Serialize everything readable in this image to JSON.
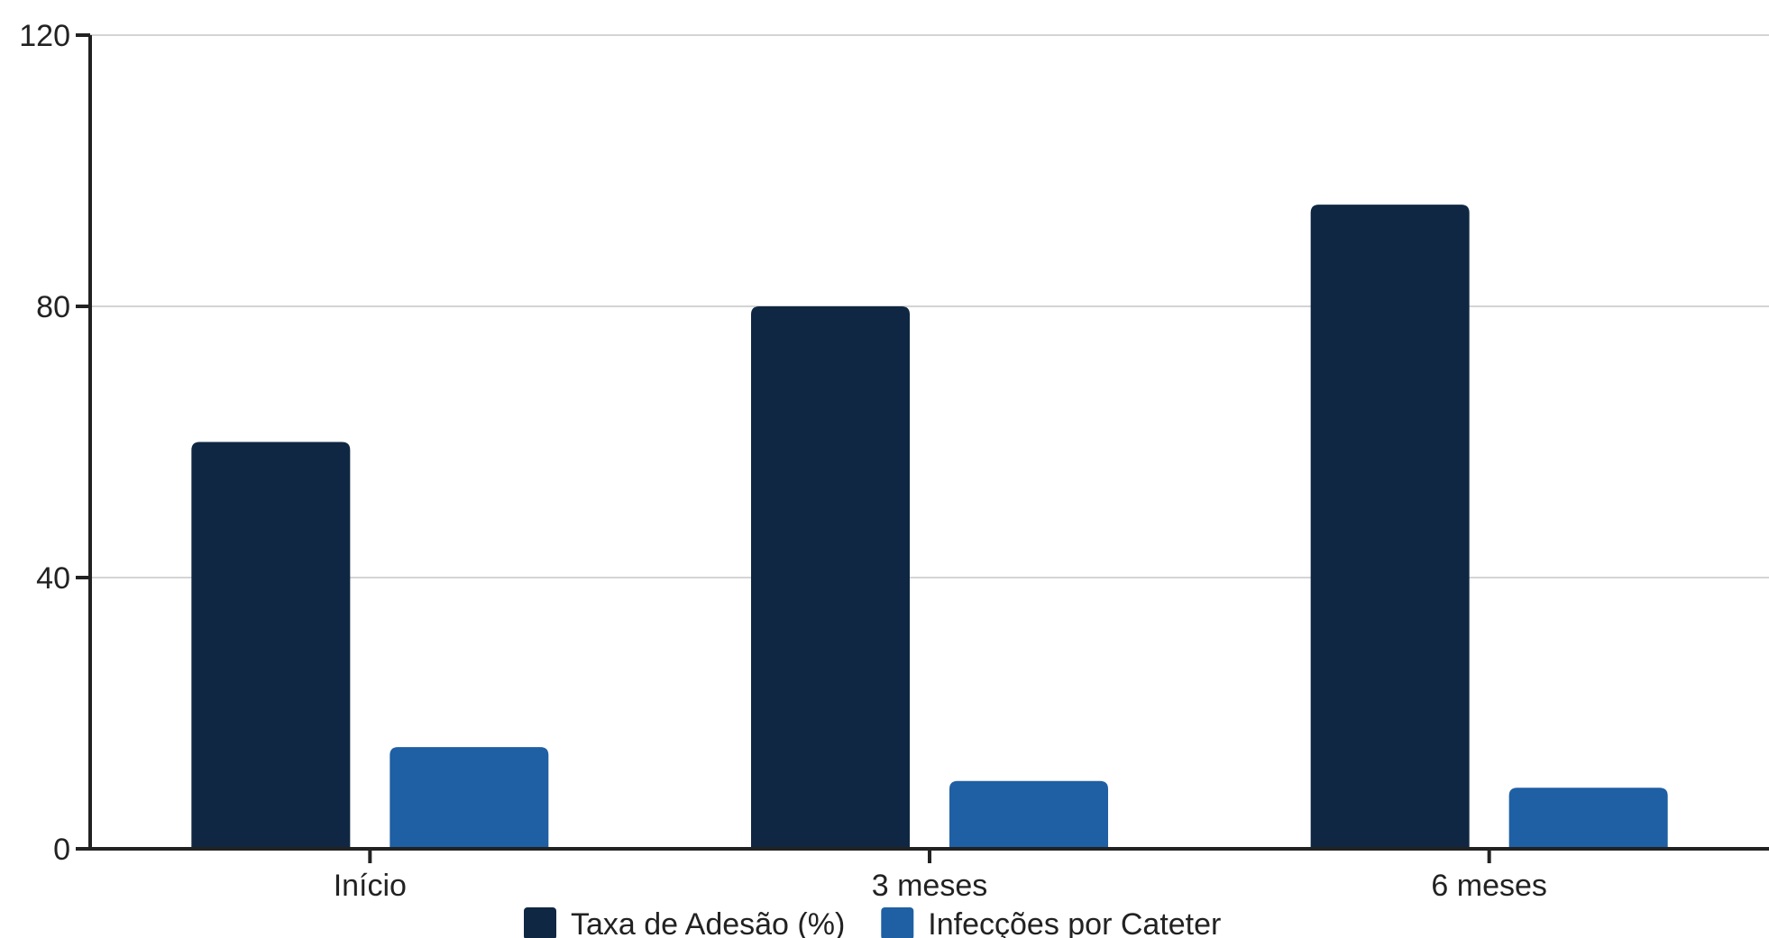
{
  "chart_data": {
    "type": "bar",
    "categories": [
      "Início",
      "3 meses",
      "6 meses"
    ],
    "series": [
      {
        "name": "Taxa de Adesão (%)",
        "values": [
          60,
          80,
          95
        ],
        "color": "#0f2742"
      },
      {
        "name": "Infecções por Cateter",
        "values": [
          15,
          10,
          9
        ],
        "color": "#1f5fa3"
      }
    ],
    "yticks": [
      0,
      40,
      80,
      120
    ],
    "ylim": [
      0,
      120
    ],
    "grid": true,
    "legend_position": "bottom-center",
    "title": "",
    "xlabel": "",
    "ylabel": ""
  }
}
